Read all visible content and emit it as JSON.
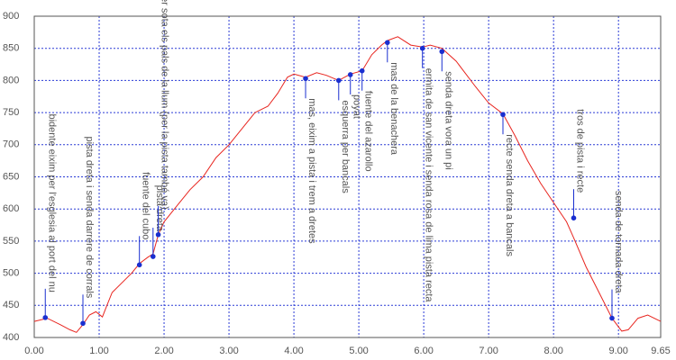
{
  "chart_data": {
    "type": "line",
    "color": "#e8251f",
    "marker_color": "#1a2fd0",
    "grid": true,
    "xlim": [
      0,
      9.65
    ],
    "ylim": [
      400,
      900
    ],
    "xticks": [
      {
        "value": 0,
        "label": "0.00"
      },
      {
        "value": 1,
        "label": "1.00"
      },
      {
        "value": 2,
        "label": "2.00"
      },
      {
        "value": 3,
        "label": "3.00"
      },
      {
        "value": 4,
        "label": "4.00"
      },
      {
        "value": 5,
        "label": "5.00"
      },
      {
        "value": 6,
        "label": "6.00"
      },
      {
        "value": 7,
        "label": "7.00"
      },
      {
        "value": 8,
        "label": "8.00"
      },
      {
        "value": 9,
        "label": "9.00"
      },
      9.65
    ],
    "yticks": [
      400,
      450,
      500,
      550,
      600,
      650,
      700,
      750,
      800,
      850,
      900
    ],
    "x": [
      0,
      0.2,
      0.4,
      0.55,
      0.65,
      0.75,
      0.85,
      0.95,
      1.05,
      1.1,
      1.2,
      1.35,
      1.5,
      1.62,
      1.75,
      1.83,
      1.91,
      2.0,
      2.2,
      2.4,
      2.6,
      2.8,
      3.0,
      3.2,
      3.4,
      3.6,
      3.75,
      3.9,
      4.0,
      4.18,
      4.35,
      4.5,
      4.69,
      4.87,
      5.05,
      5.2,
      5.35,
      5.44,
      5.6,
      5.8,
      5.98,
      6.1,
      6.28,
      6.5,
      6.8,
      7.0,
      7.22,
      7.4,
      7.6,
      7.8,
      8.0,
      8.2,
      8.31,
      8.5,
      8.7,
      8.9,
      9.05,
      9.15,
      9.3,
      9.45,
      9.65
    ],
    "values": [
      425,
      430,
      420,
      412,
      408,
      420,
      435,
      440,
      432,
      445,
      470,
      485,
      500,
      515,
      525,
      530,
      560,
      580,
      605,
      630,
      650,
      680,
      700,
      725,
      750,
      760,
      780,
      805,
      810,
      805,
      812,
      808,
      800,
      810,
      815,
      840,
      855,
      862,
      868,
      855,
      852,
      855,
      850,
      830,
      790,
      765,
      748,
      715,
      675,
      640,
      610,
      580,
      555,
      510,
      470,
      430,
      410,
      412,
      430,
      435,
      425
    ],
    "annotations": [
      {
        "x": 0.17,
        "y": 431,
        "text": "bidente eixim per l'esglesia al port del nu"
      },
      {
        "x": 0.75,
        "y": 422,
        "text": "pista dreta i senda darrere de corrals"
      },
      {
        "x": 1.62,
        "y": 513,
        "text": "fuente del cubo"
      },
      {
        "x": 1.83,
        "y": 526,
        "text": "pista dreta"
      },
      {
        "x": 1.91,
        "y": 560,
        "text": "esquema per sota els pals de la llum (per la pista també va)"
      },
      {
        "x": 4.18,
        "y": 803,
        "text": "mas, eixim a pista i trem a dretes"
      },
      {
        "x": 4.69,
        "y": 800,
        "text": "esquerra per bancals"
      },
      {
        "x": 4.87,
        "y": 809,
        "text": "poyat"
      },
      {
        "x": 5.05,
        "y": 815,
        "text": "fuente del azarollo"
      },
      {
        "x": 5.44,
        "y": 859,
        "text": "mas de la benachera"
      },
      {
        "x": 5.98,
        "y": 850,
        "text": "ermita de san vicente i senda rosa de lima pista recta"
      },
      {
        "x": 6.28,
        "y": 845,
        "text": "senda dreta vora un pi"
      },
      {
        "x": 7.22,
        "y": 747,
        "text": "recte senda dreta a bancals"
      },
      {
        "x": 8.31,
        "y": 586,
        "text": "tros de pista i recte"
      },
      {
        "x": 8.9,
        "y": 430,
        "text": "senda de tornada dreta"
      }
    ]
  }
}
